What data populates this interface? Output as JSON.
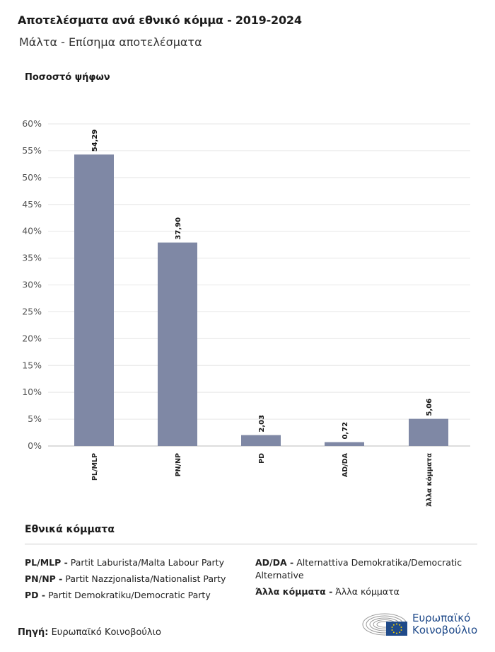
{
  "header": {
    "title": "Αποτελέσματα ανά εθνικό κόμμα - 2019-2024",
    "subtitle": "Μάλτα - Επίσημα αποτελέσματα"
  },
  "chart_data": {
    "type": "bar",
    "ylabel": "Ποσοστό ψήφων",
    "categories": [
      "PL/MLP",
      "PN/NP",
      "PD",
      "AD/DA",
      "Άλλα κόμματα"
    ],
    "values": [
      54.29,
      37.9,
      2.03,
      0.72,
      5.06
    ],
    "value_labels": [
      "54,29",
      "37,90",
      "2,03",
      "0,72",
      "5,06"
    ],
    "yticks": [
      "0%",
      "5%",
      "10%",
      "15%",
      "20%",
      "25%",
      "30%",
      "35%",
      "40%",
      "45%",
      "50%",
      "55%",
      "60%"
    ],
    "ylim": [
      0,
      60
    ],
    "grid": true,
    "bar_color": "#7f88a5"
  },
  "legend": {
    "title": "Εθνικά κόμματα",
    "items": [
      {
        "abbr": "PL/MLP -",
        "name": "Partit Laburista/Malta Labour Party"
      },
      {
        "abbr": "PN/NP -",
        "name": "Partit Nazzjonalista/Nationalist Party"
      },
      {
        "abbr": "PD -",
        "name": "Partit Demokratiku/Democratic Party"
      },
      {
        "abbr": "AD/DA -",
        "name": "Alternattiva Demokratika/Democratic Alternative"
      },
      {
        "abbr": "Άλλα κόμματα -",
        "name": "Άλλα κόμματα"
      }
    ]
  },
  "footer": {
    "source_label": "Πηγή:",
    "source_value": "Ευρωπαϊκό Κοινοβούλιο",
    "logo_line1": "Ευρωπαϊκό",
    "logo_line2": "Κοινοβούλιο"
  }
}
